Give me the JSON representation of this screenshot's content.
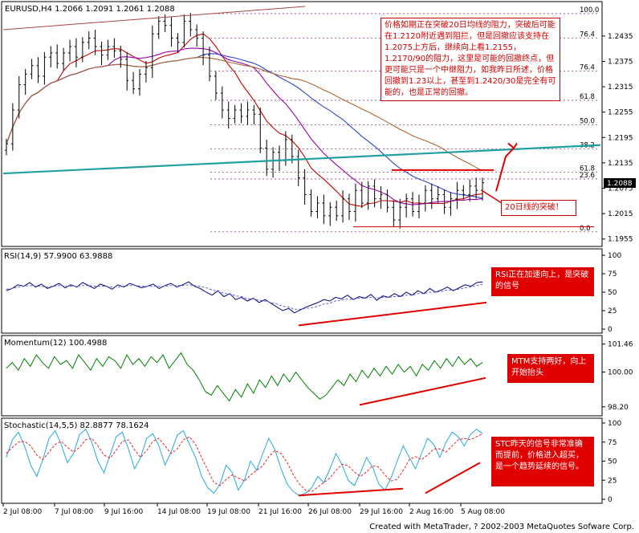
{
  "chart_data": [
    {
      "type": "candlestick",
      "title": "EURUSD,H4  1.2066 1.2091 1.2061 1.2088",
      "ylim": [
        1.1945,
        1.2505
      ],
      "y_ticks": [
        "1.2435",
        "1.2375",
        "1.2315",
        "1.2255",
        "1.2195",
        "1.2135",
        "1.2075",
        "1.2015",
        "1.1955"
      ],
      "last_price": "1.2088",
      "fib_levels": [
        {
          "label": "100.0",
          "value": 1.2488
        },
        {
          "label": "76.4",
          "value": 1.243
        },
        {
          "label": "76.4",
          "value": 1.2352
        },
        {
          "label": "61.8",
          "value": 1.2283
        },
        {
          "label": "50.0",
          "value": 1.2225
        },
        {
          "label": "38.2",
          "value": 1.2168
        },
        {
          "label": "61.8",
          "value": 1.2113
        },
        {
          "label": "23.6",
          "value": 1.2097
        },
        {
          "label": "0.0",
          "value": 1.1972
        }
      ],
      "x_labels": [
        "2 Jul 08:00",
        "7 Jul 08:00",
        "9 Jul 16:00",
        "14 Jul 08:00",
        "19 Jul 08:00",
        "21 Jul 16:00",
        "26 Jul 08:00",
        "29 Jul 16:00",
        "2 Aug 16:00",
        "5 Aug 08:00"
      ]
    },
    {
      "type": "line",
      "title": "RSI(14,9)  57.9900  63.9888",
      "ylim": [
        0,
        100
      ],
      "y_ticks": [
        "100",
        "75",
        "50",
        "25",
        "0"
      ],
      "series": [
        {
          "values": [
            52,
            55,
            60,
            58,
            63,
            57,
            61,
            55,
            58,
            62,
            56,
            60,
            57,
            63,
            59,
            55,
            61,
            58,
            54,
            60,
            57,
            62,
            59,
            56,
            58,
            61,
            55,
            59,
            62,
            57,
            60,
            64,
            58,
            55,
            50,
            46,
            52,
            44,
            48,
            40,
            43,
            38,
            42,
            36,
            40,
            35,
            30,
            25,
            28,
            22,
            26,
            30,
            33,
            36,
            40,
            38,
            43,
            41,
            46,
            40,
            44,
            42,
            47,
            39,
            45,
            43,
            48,
            44,
            50,
            46,
            52,
            48,
            55,
            50,
            53,
            57,
            52,
            56,
            60,
            58,
            63,
            64
          ]
        },
        {
          "values": [
            54,
            55,
            57,
            58,
            59,
            58,
            58,
            57,
            58,
            59,
            58,
            58,
            58,
            59,
            59,
            58,
            58,
            58,
            57,
            57,
            58,
            59,
            59,
            58,
            58,
            58,
            58,
            58,
            59,
            59,
            59,
            60,
            59,
            58,
            56,
            53,
            51,
            49,
            48,
            45,
            44,
            41,
            41,
            39,
            38,
            36,
            34,
            31,
            30,
            27,
            27,
            28,
            29,
            31,
            34,
            35,
            38,
            39,
            41,
            40,
            42,
            42,
            43,
            42,
            43,
            43,
            44,
            44,
            46,
            46,
            48,
            48,
            50,
            50,
            51,
            53,
            53,
            54,
            56,
            57,
            59,
            61
          ]
        }
      ]
    },
    {
      "type": "line",
      "title": "Momentum(12)  100.4988",
      "ylim": [
        97.9,
        101.65
      ],
      "y_ticks": [
        "101.46",
        "100.00",
        "98.20"
      ],
      "series": [
        {
          "values": [
            100.2,
            100.5,
            100.1,
            100.7,
            100.3,
            100.9,
            100.5,
            100.2,
            100.8,
            100.4,
            100.6,
            100.2,
            100.9,
            100.5,
            100.1,
            100.7,
            100.3,
            100.8,
            100.6,
            100.2,
            100.9,
            100.4,
            100.7,
            100.3,
            100.8,
            100.5,
            100.9,
            100.2,
            100.6,
            101.0,
            100.4,
            100.1,
            99.6,
            99.0,
            98.8,
            99.3,
            98.9,
            98.5,
            99.1,
            98.7,
            99.4,
            98.9,
            99.6,
            99.2,
            99.8,
            99.3,
            99.9,
            99.5,
            100.0,
            99.6,
            99.2,
            98.9,
            98.6,
            98.8,
            99.2,
            99.6,
            99.3,
            99.9,
            99.5,
            100.1,
            99.7,
            100.2,
            99.8,
            100.3,
            99.9,
            100.4,
            100.0,
            100.3,
            99.8,
            100.4,
            100.1,
            100.6,
            100.2,
            100.7,
            100.3,
            100.8,
            100.4,
            100.7,
            100.3,
            100.5
          ]
        }
      ]
    },
    {
      "type": "line",
      "title": "Stochastic(14,5,5)  82.8877  78.1624",
      "ylim": [
        0,
        100
      ],
      "y_ticks": [
        "100",
        "75",
        "50",
        "25",
        "0"
      ],
      "series": [
        {
          "values": [
            55,
            78,
            88,
            70,
            45,
            30,
            52,
            80,
            90,
            72,
            48,
            60,
            85,
            92,
            75,
            50,
            35,
            58,
            82,
            88,
            66,
            40,
            55,
            80,
            86,
            70,
            45,
            62,
            84,
            90,
            72,
            55,
            30,
            15,
            8,
            20,
            45,
            35,
            12,
            25,
            50,
            38,
            60,
            80,
            65,
            40,
            20,
            10,
            5,
            8,
            15,
            30,
            22,
            40,
            60,
            45,
            25,
            18,
            35,
            55,
            42,
            20,
            12,
            28,
            50,
            70,
            55,
            40,
            60,
            80,
            72,
            55,
            75,
            88,
            82,
            70,
            85,
            92,
            86
          ]
        },
        {
          "values": [
            60,
            68,
            75,
            76,
            70,
            58,
            52,
            62,
            72,
            76,
            68,
            62,
            68,
            78,
            80,
            70,
            58,
            54,
            64,
            76,
            78,
            65,
            55,
            64,
            76,
            80,
            70,
            60,
            66,
            78,
            82,
            72,
            55,
            38,
            22,
            18,
            26,
            32,
            28,
            24,
            32,
            38,
            44,
            56,
            64,
            60,
            48,
            32,
            20,
            12,
            10,
            16,
            22,
            28,
            38,
            46,
            44,
            36,
            30,
            36,
            44,
            42,
            32,
            24,
            26,
            38,
            52,
            56,
            52,
            58,
            66,
            66,
            62,
            70,
            78,
            80,
            78,
            82,
            86
          ]
        }
      ]
    }
  ],
  "annotations": {
    "main_note": "价格如期正在突破20日均线的阻力，突破后可能在1.2120附近遇到阻拦，但是回撤应该支持在1.2075上方后，继续向上看1.2155，1.2170/90的阻力，这里是可能的回撤终点，但更可能只是一个中继阻力，如我昨日所述，价格回撤到1.23以上，甚至到1.2420/30是完全有可能的，也是正常的回撤。",
    "breakout_note": "20日线的突破！",
    "rsi_note": "RSI正在加速向上，是突破的信号",
    "mtm_note": "MTM支持两好，向上开始抬头",
    "stoch_note": "STC昨天的信号非常准确而提前，价格进入超买，是一个趋势延续的信号。"
  },
  "footer": {
    "credit": "Created with MetaTrader, ? 2002-2003 MetaQuotes Sofware Corp."
  },
  "colors": {
    "bull": "#000000",
    "bear": "#000000",
    "ma_red": "#cc0000",
    "ma_purple": "#9900aa",
    "ma_blue": "#3344cc",
    "ma_brown": "#aa6633",
    "trend": "#20a0a0",
    "annotation": "#e00000",
    "rsi": "#000080",
    "momentum": "#008000",
    "stoch_main": "#22aadd",
    "stoch_signal": "#ee2222"
  }
}
